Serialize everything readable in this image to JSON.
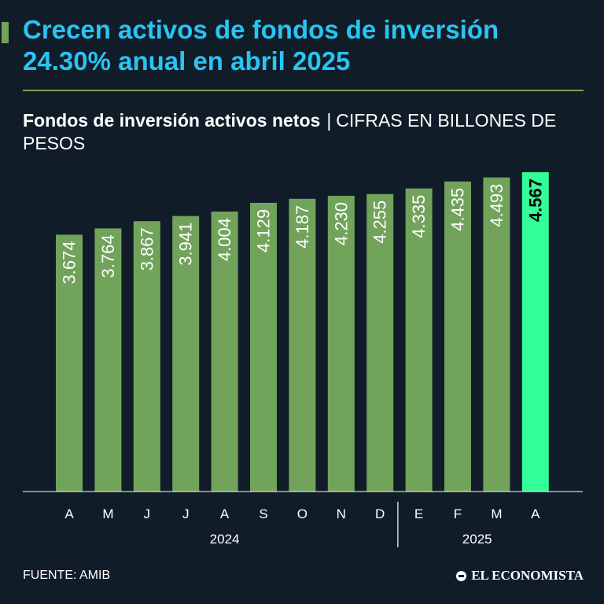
{
  "header": {
    "title": "Crecen activos de fondos de inversión 24.30% anual en abril 2025",
    "subtitle_bold": "Fondos de inversión activos netos",
    "subtitle_sep": "|",
    "subtitle_units": "CIFRAS EN BILLONES DE PESOS"
  },
  "footer": {
    "source": "FUENTE: AMIB",
    "brand": "EL ECONOMISTA"
  },
  "colors": {
    "background": "#111c29",
    "title": "#29c4f2",
    "bar": "#72a35a",
    "bar_highlight": "#33ff99",
    "accent_rule": "#72a35a"
  },
  "chart_data": {
    "type": "bar",
    "categories": [
      "A",
      "M",
      "J",
      "J",
      "A",
      "S",
      "O",
      "N",
      "D",
      "E",
      "F",
      "M",
      "A"
    ],
    "values": [
      3.674,
      3.764,
      3.867,
      3.941,
      4.004,
      4.129,
      4.187,
      4.23,
      4.255,
      4.335,
      4.435,
      4.493,
      4.567
    ],
    "value_labels": [
      "3.674",
      "3.764",
      "3.867",
      "3.941",
      "4.004",
      "4.129",
      "4.187",
      "4.230",
      "4.255",
      "4.335",
      "4.435",
      "4.493",
      "4.567"
    ],
    "year_groups": [
      {
        "label": "2024",
        "count": 9
      },
      {
        "label": "2025",
        "count": 4
      }
    ],
    "highlight_index": 12,
    "ylim": [
      0,
      4.567
    ],
    "grid": false,
    "legend": "none"
  }
}
